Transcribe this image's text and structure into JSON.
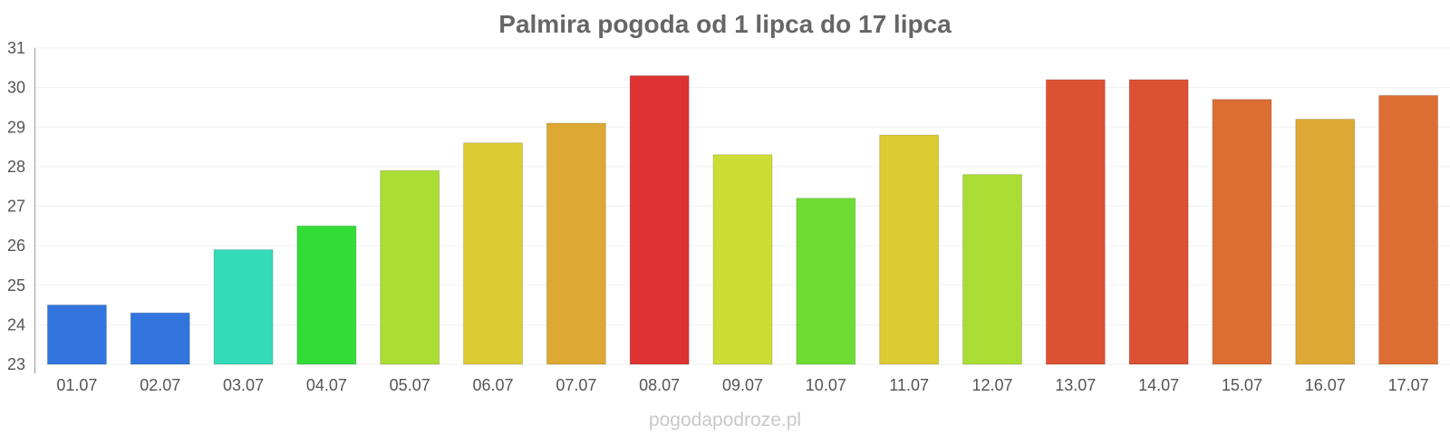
{
  "chart_data": {
    "type": "bar",
    "title": "Palmira pogoda od 1 lipca do 17 lipca",
    "xlabel": "",
    "ylabel": "",
    "ylim": [
      23,
      31
    ],
    "yticks": [
      23,
      24,
      25,
      26,
      27,
      28,
      29,
      30,
      31
    ],
    "grid": true,
    "legend": "none",
    "categories": [
      "01.07",
      "02.07",
      "03.07",
      "04.07",
      "05.07",
      "06.07",
      "07.07",
      "08.07",
      "09.07",
      "10.07",
      "11.07",
      "12.07",
      "13.07",
      "14.07",
      "15.07",
      "16.07",
      "17.07"
    ],
    "values": [
      24.5,
      24.3,
      25.9,
      26.5,
      27.9,
      28.6,
      29.1,
      30.3,
      28.3,
      27.2,
      28.8,
      27.8,
      30.2,
      30.2,
      29.7,
      29.2,
      29.8
    ],
    "colors": [
      "#3375de",
      "#3375de",
      "#33dbb9",
      "#33dd38",
      "#aadd33",
      "#ddcb33",
      "#dda833",
      "#dd3333",
      "#cedd33",
      "#6ddd33",
      "#ddcb33",
      "#aadd33",
      "#dd5133",
      "#dd5133",
      "#dd6e33",
      "#dda833",
      "#dd6e33"
    ]
  },
  "footer": {
    "source_text": "pogodapodroze.pl"
  }
}
